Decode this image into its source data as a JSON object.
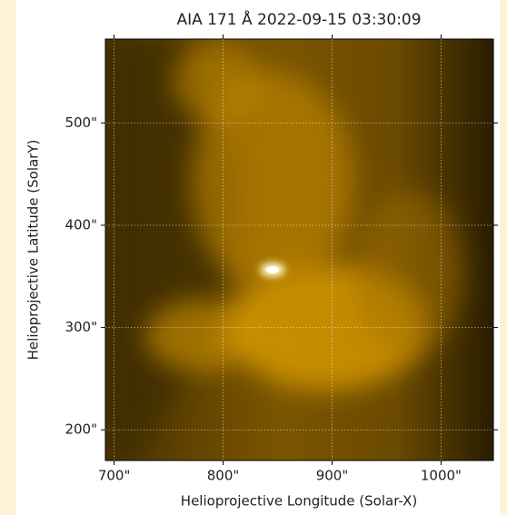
{
  "chart_data": {
    "type": "image",
    "title": "AIA 171 Å 2022-09-15 03:30:09",
    "x_label": "Helioprojective Longitude (Solar-X)",
    "y_label": "Helioprojective Latitude (SolarY)",
    "xlim": [
      692,
      1048
    ],
    "ylim": [
      170,
      582
    ],
    "xticks": [
      {
        "value": 700,
        "label": "700\""
      },
      {
        "value": 800,
        "label": "800\""
      },
      {
        "value": 900,
        "label": "900\""
      },
      {
        "value": 1000,
        "label": "1000\""
      }
    ],
    "yticks": [
      {
        "value": 200,
        "label": "200\""
      },
      {
        "value": 300,
        "label": "300\""
      },
      {
        "value": 400,
        "label": "400\""
      },
      {
        "value": 500,
        "label": "500\""
      }
    ],
    "grid": true
  }
}
